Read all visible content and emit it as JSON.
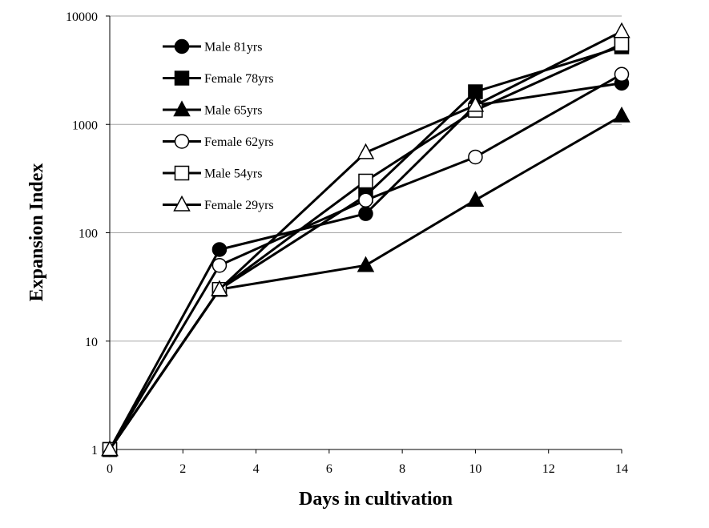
{
  "chart_data": {
    "type": "line",
    "xlabel": "Days in cultivation",
    "ylabel": "Expansion Index",
    "xlim": [
      0,
      14
    ],
    "ylim": [
      1,
      10000
    ],
    "yscale": "log",
    "x_ticks": [
      "0",
      "2",
      "4",
      "6",
      "8",
      "10",
      "12",
      "14"
    ],
    "y_ticks": [
      "1",
      "10",
      "100",
      "1000",
      "10000"
    ],
    "grid": "horizontal",
    "legend_position": "top-left",
    "x": [
      0,
      3,
      7,
      10,
      14
    ],
    "series": [
      {
        "name": "Male 81yrs",
        "marker": "filled-circle",
        "values": [
          1,
          70,
          150,
          1500,
          2400
        ]
      },
      {
        "name": "Female 78yrs",
        "marker": "filled-square",
        "values": [
          1,
          30,
          220,
          2000,
          5200
        ]
      },
      {
        "name": "Male 65yrs",
        "marker": "filled-triangle",
        "values": [
          1,
          30,
          50,
          200,
          1200
        ]
      },
      {
        "name": "Female 62yrs",
        "marker": "open-circle",
        "values": [
          1,
          50,
          200,
          500,
          2900
        ]
      },
      {
        "name": "Male 54yrs",
        "marker": "open-square",
        "values": [
          1,
          30,
          300,
          1350,
          5500
        ]
      },
      {
        "name": "Female 29yrs",
        "marker": "open-triangle",
        "values": [
          1,
          30,
          550,
          1500,
          7200
        ]
      }
    ],
    "colors": {
      "line": "#000000",
      "grid": "#a6a6a6",
      "background": "#ffffff"
    }
  }
}
